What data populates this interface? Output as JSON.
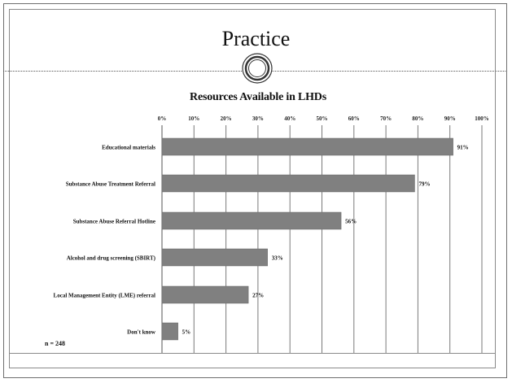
{
  "slide": {
    "title": "Practice",
    "note": "n = 248"
  },
  "chart_data": {
    "type": "bar",
    "orientation": "horizontal",
    "title": "Resources Available in LHDs",
    "categories": [
      "Educational materials",
      "Substance Abuse Treatment Referral",
      "Substance Abuse Referral Hotline",
      "Alcohol and drug screening (SBIRT)",
      "Local Management Entity (LME) referral",
      "Don't know"
    ],
    "values": [
      91,
      79,
      56,
      33,
      27,
      5
    ],
    "data_labels": [
      "91%",
      "79%",
      "56%",
      "33%",
      "27%",
      "5%"
    ],
    "x_ticks": [
      "0%",
      "10%",
      "20%",
      "30%",
      "40%",
      "50%",
      "60%",
      "70%",
      "80%",
      "90%",
      "100%"
    ],
    "xlim": [
      0,
      100
    ],
    "axis_position": "top",
    "grid": true,
    "bar_color": "#808080"
  }
}
